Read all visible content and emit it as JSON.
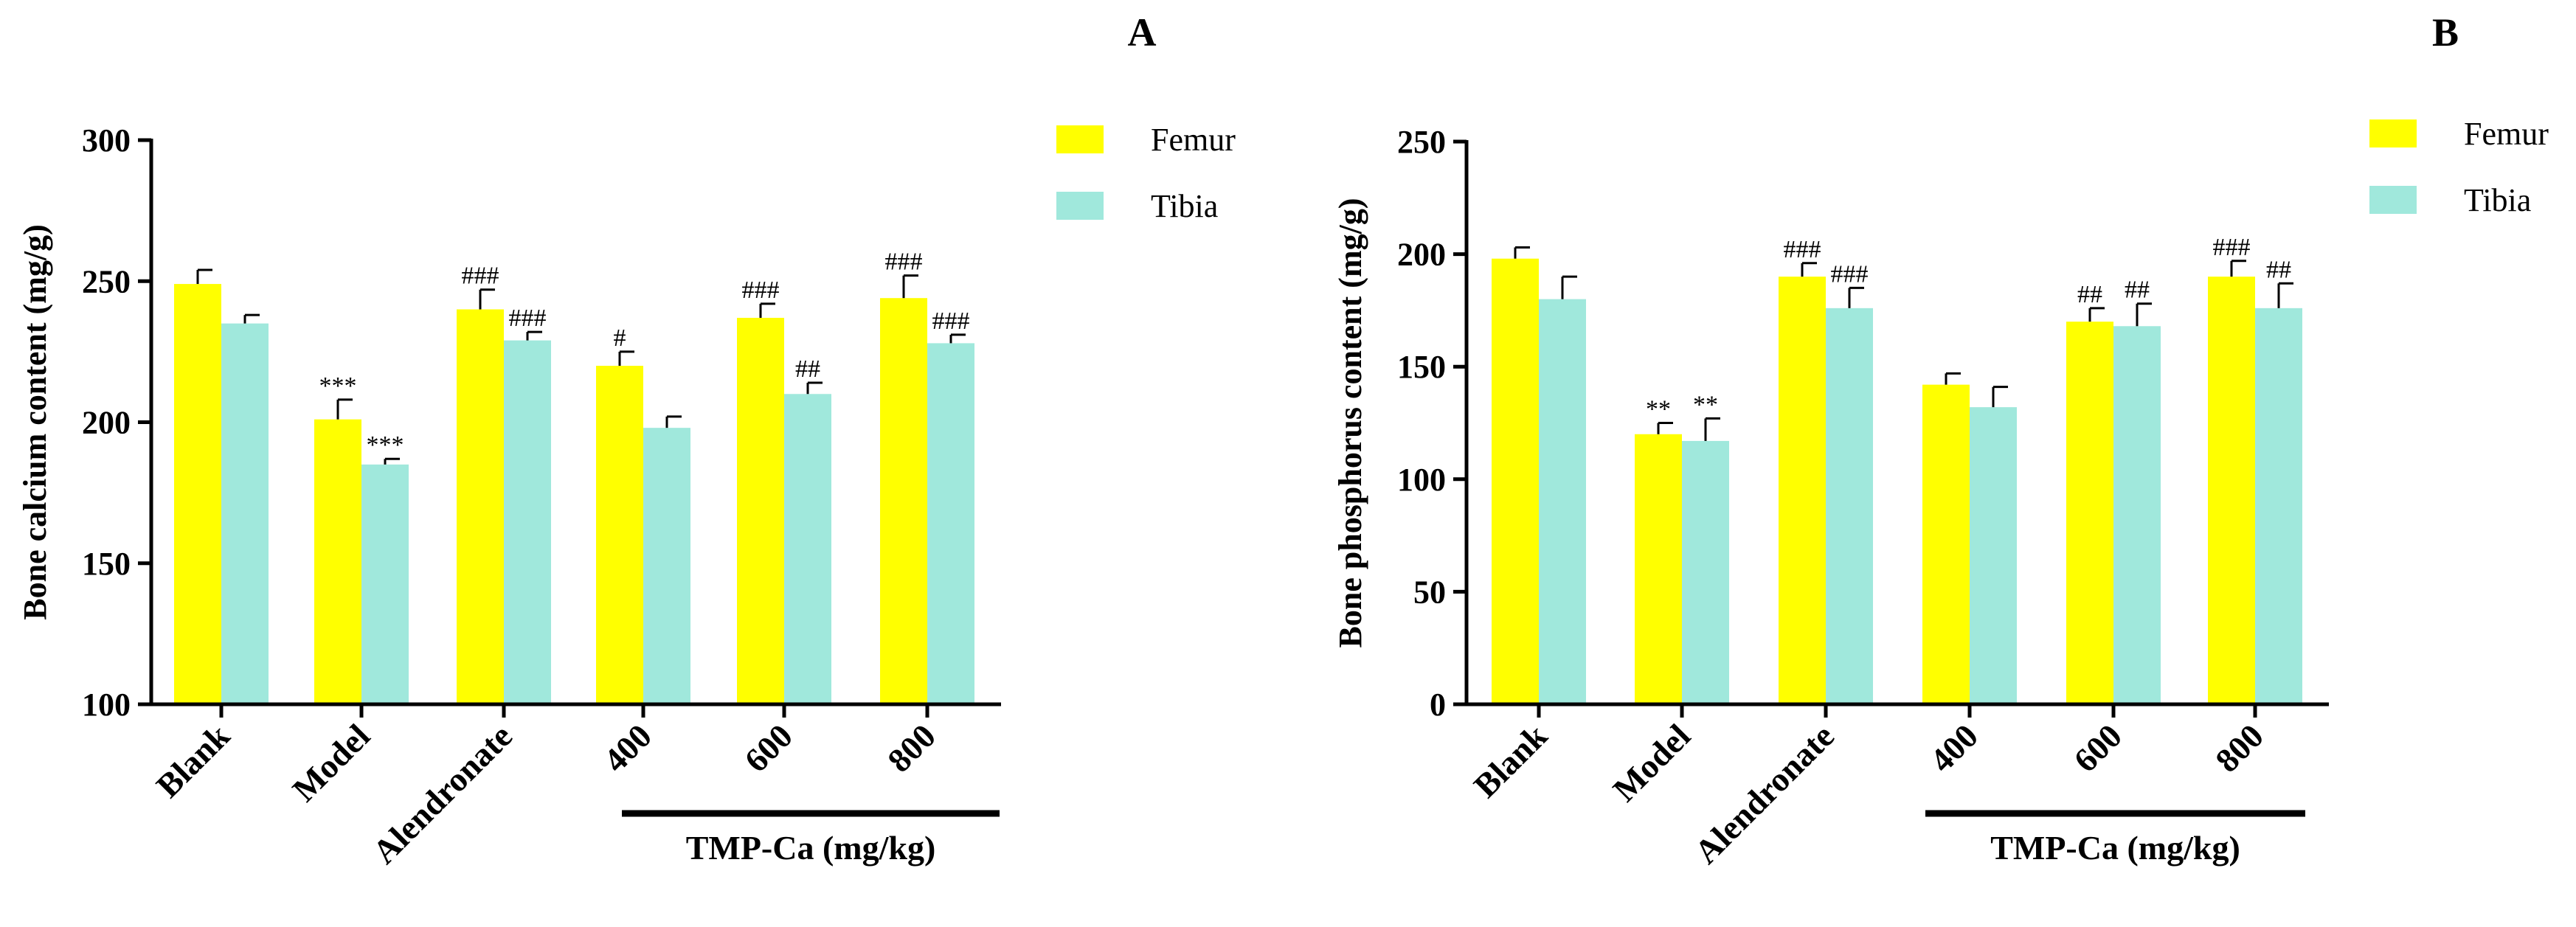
{
  "chart_data": [
    {
      "panel": "A",
      "type": "bar",
      "ylabel": "Bone calcium content (mg/g)",
      "ylim": [
        100,
        300
      ],
      "yticks": [
        100,
        150,
        200,
        250,
        300
      ],
      "categories": [
        "Blank",
        "Model",
        "Alendronate",
        "400",
        "600",
        "800"
      ],
      "group_label": "TMP-Ca (mg/kg)",
      "series": [
        {
          "name": "Femur",
          "color": "#ffff00",
          "values": [
            249,
            201,
            240,
            220,
            237,
            244
          ],
          "errors": [
            5,
            7,
            7,
            5,
            5,
            8
          ],
          "significance": [
            "",
            "***",
            "###",
            "#",
            "###",
            "###"
          ]
        },
        {
          "name": "Tibia",
          "color": "#a0e8dc",
          "values": [
            235,
            185,
            229,
            198,
            210,
            228
          ],
          "errors": [
            3,
            2,
            3,
            4,
            4,
            3
          ],
          "significance": [
            "",
            "***",
            "###",
            "",
            "##",
            "###"
          ]
        }
      ]
    },
    {
      "panel": "B",
      "type": "bar",
      "ylabel": "Bone phosphorus content (mg/g)",
      "ylim": [
        0,
        250
      ],
      "yticks": [
        0,
        50,
        100,
        150,
        200,
        250
      ],
      "categories": [
        "Blank",
        "Model",
        "Alendronate",
        "400",
        "600",
        "800"
      ],
      "group_label": "TMP-Ca (mg/kg)",
      "series": [
        {
          "name": "Femur",
          "color": "#ffff00",
          "values": [
            198,
            120,
            190,
            142,
            170,
            190
          ],
          "errors": [
            5,
            5,
            6,
            5,
            6,
            7
          ],
          "significance": [
            "",
            "**",
            "###",
            "",
            "##",
            "###"
          ]
        },
        {
          "name": "Tibia",
          "color": "#a0e8dc",
          "values": [
            180,
            117,
            176,
            132,
            168,
            176
          ],
          "errors": [
            10,
            10,
            9,
            9,
            10,
            11
          ],
          "significance": [
            "",
            "**",
            "###",
            "",
            "##",
            "##"
          ]
        }
      ]
    }
  ]
}
